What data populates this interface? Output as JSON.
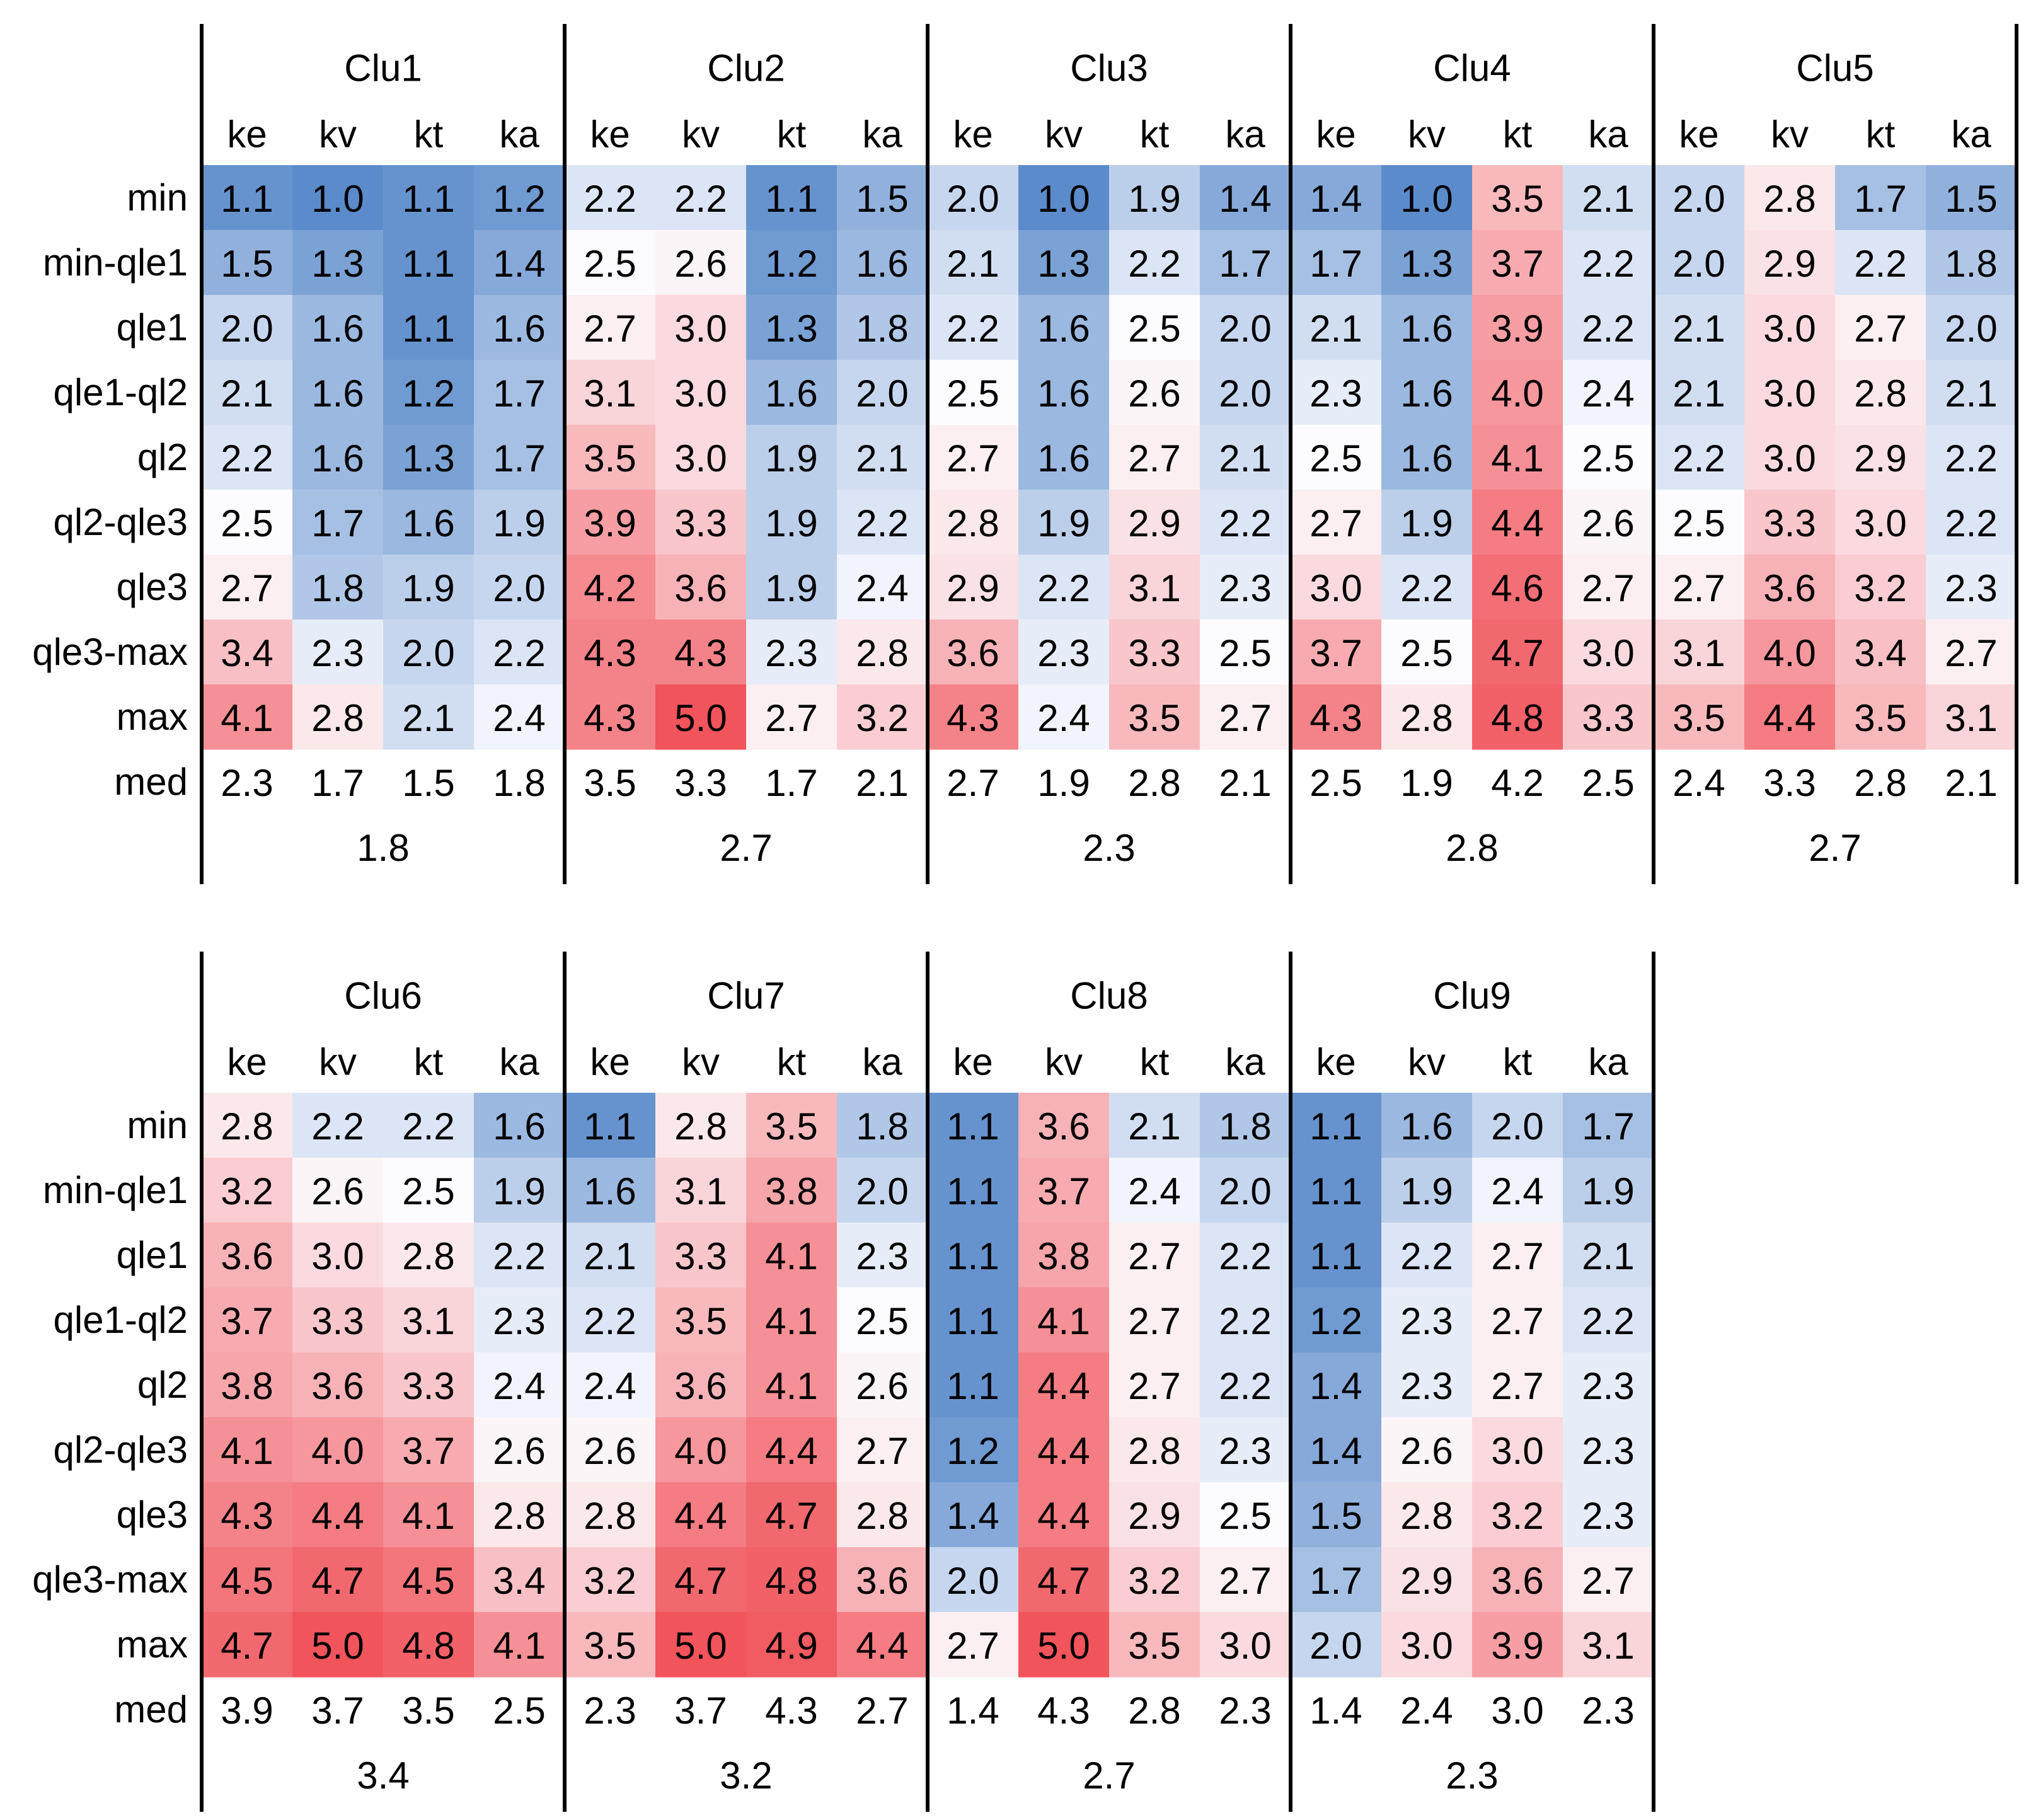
{
  "chart_data": {
    "type": "heatmap",
    "title": "",
    "row_labels": [
      "min",
      "min-qle1",
      "qle1",
      "qle1-ql2",
      "ql2",
      "ql2-qle3",
      "qle3",
      "qle3-max",
      "max"
    ],
    "median_label": "med",
    "column_labels": [
      "ke",
      "kv",
      "kt",
      "ka"
    ],
    "color_scale": {
      "min": 1.0,
      "mid": 2.5,
      "max": 5.0,
      "low_color": "#5b8bcb",
      "mid_color": "#fcfcff",
      "high_color": "#f1545b"
    },
    "clusters": [
      {
        "name": "Clu1",
        "rows": [
          [
            1.1,
            1.0,
            1.1,
            1.2
          ],
          [
            1.5,
            1.3,
            1.1,
            1.4
          ],
          [
            2.0,
            1.6,
            1.1,
            1.6
          ],
          [
            2.1,
            1.6,
            1.2,
            1.7
          ],
          [
            2.2,
            1.6,
            1.3,
            1.7
          ],
          [
            2.5,
            1.7,
            1.6,
            1.9
          ],
          [
            2.7,
            1.8,
            1.9,
            2.0
          ],
          [
            3.4,
            2.3,
            2.0,
            2.2
          ],
          [
            4.1,
            2.8,
            2.1,
            2.4
          ]
        ],
        "med": [
          2.3,
          1.7,
          1.5,
          1.8
        ],
        "overall": "1.8"
      },
      {
        "name": "Clu2",
        "rows": [
          [
            2.2,
            2.2,
            1.1,
            1.5
          ],
          [
            2.5,
            2.6,
            1.2,
            1.6
          ],
          [
            2.7,
            3.0,
            1.3,
            1.8
          ],
          [
            3.1,
            3.0,
            1.6,
            2.0
          ],
          [
            3.5,
            3.0,
            1.9,
            2.1
          ],
          [
            3.9,
            3.3,
            1.9,
            2.2
          ],
          [
            4.2,
            3.6,
            1.9,
            2.4
          ],
          [
            4.3,
            4.3,
            2.3,
            2.8
          ],
          [
            4.3,
            5.0,
            2.7,
            3.2
          ]
        ],
        "med": [
          3.5,
          3.3,
          1.7,
          2.1
        ],
        "overall": "2.7"
      },
      {
        "name": "Clu3",
        "rows": [
          [
            2.0,
            1.0,
            1.9,
            1.4
          ],
          [
            2.1,
            1.3,
            2.2,
            1.7
          ],
          [
            2.2,
            1.6,
            2.5,
            2.0
          ],
          [
            2.5,
            1.6,
            2.6,
            2.0
          ],
          [
            2.7,
            1.6,
            2.7,
            2.1
          ],
          [
            2.8,
            1.9,
            2.9,
            2.2
          ],
          [
            2.9,
            2.2,
            3.1,
            2.3
          ],
          [
            3.6,
            2.3,
            3.3,
            2.5
          ],
          [
            4.3,
            2.4,
            3.5,
            2.7
          ]
        ],
        "med": [
          2.7,
          1.9,
          2.8,
          2.1
        ],
        "overall": "2.3"
      },
      {
        "name": "Clu4",
        "rows": [
          [
            1.4,
            1.0,
            3.5,
            2.1
          ],
          [
            1.7,
            1.3,
            3.7,
            2.2
          ],
          [
            2.1,
            1.6,
            3.9,
            2.2
          ],
          [
            2.3,
            1.6,
            4.0,
            2.4
          ],
          [
            2.5,
            1.6,
            4.1,
            2.5
          ],
          [
            2.7,
            1.9,
            4.4,
            2.6
          ],
          [
            3.0,
            2.2,
            4.6,
            2.7
          ],
          [
            3.7,
            2.5,
            4.7,
            3.0
          ],
          [
            4.3,
            2.8,
            4.8,
            3.3
          ]
        ],
        "med": [
          2.5,
          1.9,
          4.2,
          2.5
        ],
        "overall": "2.8"
      },
      {
        "name": "Clu5",
        "rows": [
          [
            2.0,
            2.8,
            1.7,
            1.5
          ],
          [
            2.0,
            2.9,
            2.2,
            1.8
          ],
          [
            2.1,
            3.0,
            2.7,
            2.0
          ],
          [
            2.1,
            3.0,
            2.8,
            2.1
          ],
          [
            2.2,
            3.0,
            2.9,
            2.2
          ],
          [
            2.5,
            3.3,
            3.0,
            2.2
          ],
          [
            2.7,
            3.6,
            3.2,
            2.3
          ],
          [
            3.1,
            4.0,
            3.4,
            2.7
          ],
          [
            3.5,
            4.4,
            3.5,
            3.1
          ]
        ],
        "med": [
          2.4,
          3.3,
          2.8,
          2.1
        ],
        "overall": "2.7"
      },
      {
        "name": "Clu6",
        "rows": [
          [
            2.8,
            2.2,
            2.2,
            1.6
          ],
          [
            3.2,
            2.6,
            2.5,
            1.9
          ],
          [
            3.6,
            3.0,
            2.8,
            2.2
          ],
          [
            3.7,
            3.3,
            3.1,
            2.3
          ],
          [
            3.8,
            3.6,
            3.3,
            2.4
          ],
          [
            4.1,
            4.0,
            3.7,
            2.6
          ],
          [
            4.3,
            4.4,
            4.1,
            2.8
          ],
          [
            4.5,
            4.7,
            4.5,
            3.4
          ],
          [
            4.7,
            5.0,
            4.8,
            4.1
          ]
        ],
        "med": [
          3.9,
          3.7,
          3.5,
          2.5
        ],
        "overall": "3.4"
      },
      {
        "name": "Clu7",
        "rows": [
          [
            1.1,
            2.8,
            3.5,
            1.8
          ],
          [
            1.6,
            3.1,
            3.8,
            2.0
          ],
          [
            2.1,
            3.3,
            4.1,
            2.3
          ],
          [
            2.2,
            3.5,
            4.1,
            2.5
          ],
          [
            2.4,
            3.6,
            4.1,
            2.6
          ],
          [
            2.6,
            4.0,
            4.4,
            2.7
          ],
          [
            2.8,
            4.4,
            4.7,
            2.8
          ],
          [
            3.2,
            4.7,
            4.8,
            3.6
          ],
          [
            3.5,
            5.0,
            4.9,
            4.4
          ]
        ],
        "med": [
          2.3,
          3.7,
          4.3,
          2.7
        ],
        "overall": "3.2"
      },
      {
        "name": "Clu8",
        "rows": [
          [
            1.1,
            3.6,
            2.1,
            1.8
          ],
          [
            1.1,
            3.7,
            2.4,
            2.0
          ],
          [
            1.1,
            3.8,
            2.7,
            2.2
          ],
          [
            1.1,
            4.1,
            2.7,
            2.2
          ],
          [
            1.1,
            4.4,
            2.7,
            2.2
          ],
          [
            1.2,
            4.4,
            2.8,
            2.3
          ],
          [
            1.4,
            4.4,
            2.9,
            2.5
          ],
          [
            2.0,
            4.7,
            3.2,
            2.7
          ],
          [
            2.7,
            5.0,
            3.5,
            3.0
          ]
        ],
        "med": [
          1.4,
          4.3,
          2.8,
          2.3
        ],
        "overall": "2.7"
      },
      {
        "name": "Clu9",
        "rows": [
          [
            1.1,
            1.6,
            2.0,
            1.7
          ],
          [
            1.1,
            1.9,
            2.4,
            1.9
          ],
          [
            1.1,
            2.2,
            2.7,
            2.1
          ],
          [
            1.2,
            2.3,
            2.7,
            2.2
          ],
          [
            1.4,
            2.3,
            2.7,
            2.3
          ],
          [
            1.4,
            2.6,
            3.0,
            2.3
          ],
          [
            1.5,
            2.8,
            3.2,
            2.3
          ],
          [
            1.7,
            2.9,
            3.6,
            2.7
          ],
          [
            2.0,
            3.0,
            3.9,
            3.1
          ]
        ],
        "med": [
          1.4,
          2.4,
          3.0,
          2.3
        ],
        "overall": "2.3"
      }
    ]
  }
}
